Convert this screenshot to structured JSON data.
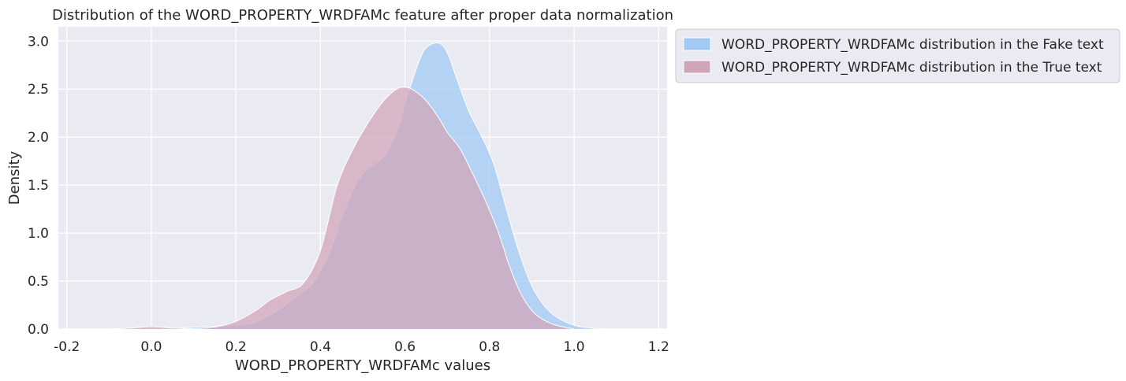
{
  "chart_data": {
    "type": "area",
    "title": "Distribution of the WORD_PROPERTY_WRDFAMc feature after proper data normalization",
    "xlabel": "WORD_PROPERTY_WRDFAMc values",
    "ylabel": "Density",
    "xlim": [
      -0.22,
      1.22
    ],
    "ylim": [
      0,
      3.15
    ],
    "xticks": [
      "-0.2",
      "0.0",
      "0.2",
      "0.4",
      "0.6",
      "0.8",
      "1.0",
      "1.2"
    ],
    "yticks": [
      "0.0",
      "0.5",
      "1.0",
      "1.5",
      "2.0",
      "2.5",
      "3.0"
    ],
    "grid": true,
    "legend_position": "outside-top-right",
    "series": [
      {
        "name": "WORD_PROPERTY_WRDFAMc distribution in the Fake text",
        "color": "#a1c9f4",
        "x": [
          -0.1,
          0.0,
          0.05,
          0.1,
          0.15,
          0.2,
          0.25,
          0.3,
          0.35,
          0.38,
          0.42,
          0.46,
          0.5,
          0.55,
          0.58,
          0.6,
          0.63,
          0.65,
          0.68,
          0.7,
          0.72,
          0.75,
          0.78,
          0.81,
          0.84,
          0.87,
          0.9,
          0.93,
          0.96,
          1.0,
          1.04,
          1.08,
          1.12
        ],
        "values": [
          0.0,
          0.0,
          0.005,
          0.02,
          0.03,
          0.04,
          0.08,
          0.2,
          0.36,
          0.47,
          0.78,
          1.28,
          1.62,
          1.8,
          2.05,
          2.35,
          2.75,
          2.93,
          2.98,
          2.88,
          2.64,
          2.28,
          2.02,
          1.72,
          1.25,
          0.8,
          0.45,
          0.24,
          0.12,
          0.04,
          0.01,
          0.0,
          0.0
        ]
      },
      {
        "name": "WORD_PROPERTY_WRDFAMc distribution in the True text",
        "color": "#d0a5ba",
        "x": [
          -0.1,
          -0.05,
          0.0,
          0.05,
          0.1,
          0.15,
          0.2,
          0.25,
          0.28,
          0.32,
          0.36,
          0.4,
          0.44,
          0.48,
          0.52,
          0.55,
          0.58,
          0.6,
          0.62,
          0.65,
          0.68,
          0.7,
          0.73,
          0.76,
          0.79,
          0.82,
          0.85,
          0.88,
          0.91,
          0.95,
          1.0
        ],
        "values": [
          0.0,
          0.01,
          0.025,
          0.01,
          0.005,
          0.02,
          0.08,
          0.2,
          0.3,
          0.39,
          0.48,
          0.82,
          1.5,
          1.9,
          2.2,
          2.38,
          2.5,
          2.52,
          2.49,
          2.38,
          2.2,
          2.05,
          1.88,
          1.62,
          1.34,
          1.02,
          0.62,
          0.32,
          0.15,
          0.05,
          0.0
        ]
      }
    ]
  }
}
